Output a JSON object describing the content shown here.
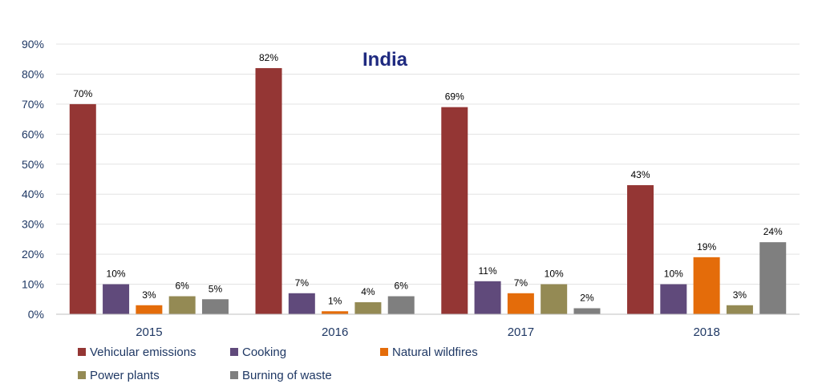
{
  "chart_data": {
    "type": "bar",
    "title": "India",
    "categories": [
      "2015",
      "2016",
      "2017",
      "2018"
    ],
    "ylim": [
      0,
      90
    ],
    "yticks": [
      "0%",
      "10%",
      "20%",
      "30%",
      "40%",
      "50%",
      "60%",
      "70%",
      "80%",
      "90%"
    ],
    "grid": true,
    "legend_position": "bottom",
    "series": [
      {
        "name": "Vehicular emissions",
        "color": "#943634",
        "values": [
          70,
          82,
          69,
          43
        ],
        "labels": [
          "70%",
          "82%",
          "69%",
          "43%"
        ]
      },
      {
        "name": "Cooking",
        "color": "#604a7b",
        "values": [
          10,
          7,
          11,
          10
        ],
        "labels": [
          "10%",
          "7%",
          "11%",
          "10%"
        ]
      },
      {
        "name": "Natural wildfires",
        "color": "#e46c0a",
        "values": [
          3,
          1,
          7,
          19
        ],
        "labels": [
          "3%",
          "1%",
          "7%",
          "19%"
        ]
      },
      {
        "name": "Power plants",
        "color": "#948a54",
        "values": [
          6,
          4,
          10,
          3
        ],
        "labels": [
          "6%",
          "4%",
          "10%",
          "3%"
        ]
      },
      {
        "name": "Burning of waste",
        "color": "#7f7f7f",
        "values": [
          5,
          6,
          2,
          24
        ],
        "labels": [
          "5%",
          "6%",
          "2%",
          "24%"
        ]
      }
    ]
  }
}
